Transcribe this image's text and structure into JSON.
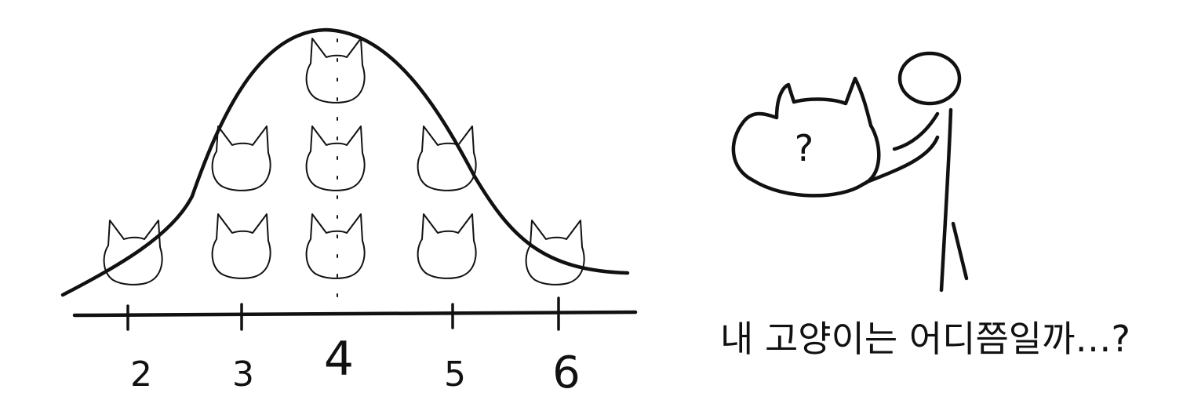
{
  "chart_data": {
    "type": "diagram",
    "x_ticks": [
      "2",
      "3",
      "4",
      "5",
      "6"
    ],
    "counts": [
      1,
      2,
      3,
      2,
      1
    ]
  },
  "question_mark": "?",
  "caption": "내 고양이는 어디쯤일까…?"
}
